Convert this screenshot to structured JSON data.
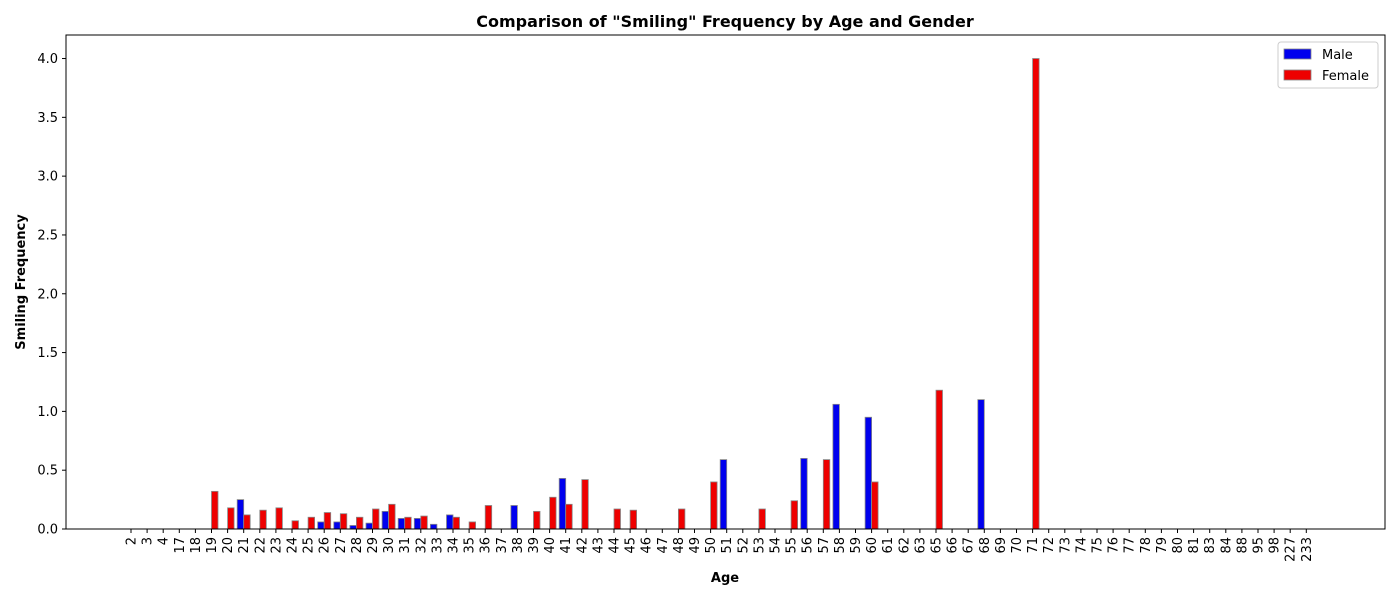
{
  "chart_data": {
    "type": "bar",
    "title": "Comparison of \"Smiling\" Frequency by Age and Gender",
    "xlabel": "Age",
    "ylabel": "Smiling Frequency",
    "ylim": [
      0,
      4.2
    ],
    "yticks": [
      "0.0",
      "0.5",
      "1.0",
      "1.5",
      "2.0",
      "2.5",
      "3.0",
      "3.5",
      "4.0"
    ],
    "legend_position": "top-right",
    "grid": false,
    "categories": [
      "2",
      "3",
      "4",
      "17",
      "18",
      "19",
      "20",
      "21",
      "22",
      "23",
      "24",
      "25",
      "26",
      "27",
      "28",
      "29",
      "30",
      "31",
      "32",
      "33",
      "34",
      "35",
      "36",
      "37",
      "38",
      "39",
      "40",
      "41",
      "42",
      "43",
      "44",
      "45",
      "46",
      "47",
      "48",
      "49",
      "50",
      "51",
      "52",
      "53",
      "54",
      "55",
      "56",
      "57",
      "58",
      "59",
      "60",
      "61",
      "62",
      "63",
      "65",
      "66",
      "67",
      "68",
      "69",
      "70",
      "71",
      "72",
      "73",
      "74",
      "75",
      "76",
      "77",
      "78",
      "79",
      "80",
      "81",
      "83",
      "84",
      "88",
      "95",
      "98",
      "227",
      "233"
    ],
    "series": [
      {
        "name": "Male",
        "color": "#0000ee",
        "values": [
          0,
          0,
          0,
          0,
          0,
          0,
          0,
          0.25,
          0,
          0,
          0,
          0,
          0.06,
          0.06,
          0.03,
          0.05,
          0.15,
          0.09,
          0.09,
          0.04,
          0.12,
          0,
          0,
          0,
          0.2,
          0,
          0,
          0.43,
          0,
          0,
          0,
          0,
          0,
          0,
          0,
          0,
          0,
          0.59,
          0,
          0,
          0,
          0,
          0.6,
          0,
          1.06,
          0,
          0.95,
          0,
          0,
          0,
          0,
          0,
          0,
          1.1,
          0,
          0,
          0,
          0,
          0,
          0,
          0,
          0,
          0,
          0,
          0,
          0,
          0,
          0,
          0,
          0,
          0,
          0,
          0,
          0
        ]
      },
      {
        "name": "Female",
        "color": "#ee0000",
        "values": [
          0,
          0,
          0,
          0,
          0,
          0.32,
          0.18,
          0.12,
          0.16,
          0.18,
          0.07,
          0.1,
          0.14,
          0.13,
          0.1,
          0.17,
          0.21,
          0.1,
          0.11,
          0,
          0.1,
          0.06,
          0.2,
          0,
          0,
          0.15,
          0.27,
          0.21,
          0.42,
          0,
          0.17,
          0.16,
          0,
          0,
          0.17,
          0,
          0.4,
          0,
          0,
          0.17,
          0,
          0.24,
          0,
          0.59,
          0,
          0,
          0.4,
          0,
          0,
          0,
          1.18,
          0,
          0,
          0,
          0,
          0,
          4.0,
          0,
          0,
          0,
          0,
          0,
          0,
          0,
          0,
          0,
          0,
          0,
          0,
          0,
          0,
          0,
          0,
          0
        ]
      }
    ]
  }
}
